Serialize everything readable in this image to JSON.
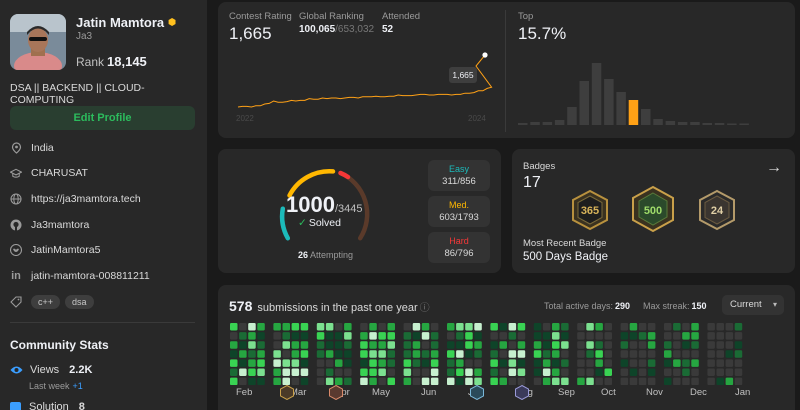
{
  "profile": {
    "name": "Jatin Mamtora",
    "handle": "Ja3",
    "rank_label": "Rank",
    "rank_value": "18,145",
    "bio": "DSA || BACKEND || CLOUD-COMPUTING",
    "edit_label": "Edit Profile",
    "location": "India",
    "school": "CHARUSAT",
    "website": "https://ja3mamtora.tech",
    "github": "Ja3mamtora",
    "twitter": "JatinMamtora5",
    "linkedin": "jatin-mamtora-008811211",
    "skills": [
      "c++",
      "dsa"
    ]
  },
  "community": {
    "title": "Community Stats",
    "views_label": "Views",
    "views_value": "2.2K",
    "lastweek_label": "Last week",
    "lastweek_delta": "+1",
    "solution_label": "Solution",
    "solution_value": "8"
  },
  "contest": {
    "rating_label": "Contest Rating",
    "rating_value": "1,665",
    "global_label": "Global Ranking",
    "global_value": "100,065",
    "global_total": "/653,032",
    "attended_label": "Attended",
    "attended_value": "52",
    "tooltip": "1,665",
    "year_start": "2022",
    "year_end": "2024",
    "top_label": "Top",
    "top_value": "15.7%"
  },
  "problems": {
    "solved": "1000",
    "total": "/3445",
    "solved_label": "Solved",
    "attempting_count": "26",
    "attempting_label": "Attempting",
    "easy": {
      "label": "Easy",
      "count": "311/856",
      "color": "#1cbaba"
    },
    "medium": {
      "label": "Med.",
      "count": "603/1793",
      "color": "#ffb700"
    },
    "hard": {
      "label": "Hard",
      "count": "86/796",
      "color": "#f63737"
    }
  },
  "badges": {
    "label": "Badges",
    "count": "17",
    "recent_label": "Most Recent Badge",
    "recent_name": "500 Days Badge",
    "items": [
      {
        "icon": "badge-365-days-icon",
        "text": "365"
      },
      {
        "icon": "badge-500-days-icon",
        "text": "500"
      },
      {
        "icon": "badge-2024-icon",
        "text": "24"
      }
    ]
  },
  "submissions": {
    "count": "578",
    "text": "submissions in the past one year",
    "active_label": "Total active days:",
    "active_value": "290",
    "streak_label": "Max streak:",
    "streak_value": "150",
    "dropdown": "Current",
    "months": [
      "Feb",
      "Mar",
      "Apr",
      "May",
      "Jun",
      "Jul",
      "Aug",
      "Sep",
      "Oct",
      "Nov",
      "Dec",
      "Jan"
    ]
  },
  "colors": {
    "accent_green": "#2cbb5d",
    "rating_line": "#ffa116"
  }
}
